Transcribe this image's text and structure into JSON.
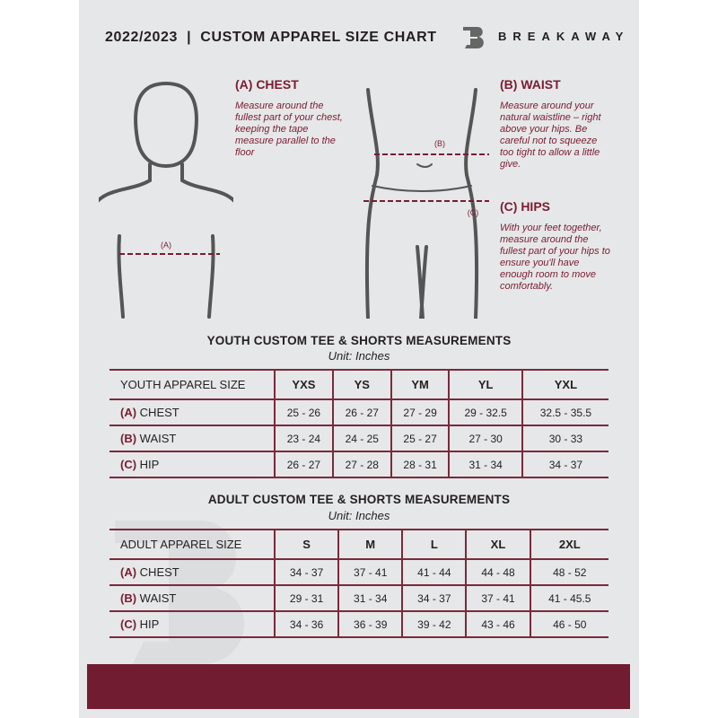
{
  "header": {
    "title": "2022/2023  |  CUSTOM APPAREL SIZE CHART",
    "brand": "BREAKAWAY",
    "logo_letter": "B"
  },
  "measures": {
    "chest": {
      "heading": "(A) CHEST",
      "desc": "Measure around the fullest part of your chest, keeping the tape measure parallel to the floor",
      "marker": "(A)"
    },
    "waist": {
      "heading": "(B) WAIST",
      "desc": "Measure around your natural waistline – right above your hips. Be careful not to squeeze too tight to allow a little give.",
      "marker": "(B)"
    },
    "hips": {
      "heading": "(C) HIPS",
      "desc": "With your feet together, measure around the fullest part of your hips to ensure you'll have enough room to move comfortably.",
      "marker": "(C)"
    }
  },
  "youth": {
    "title": "YOUTH CUSTOM TEE & SHORTS MEASUREMENTS",
    "unit": "Unit: Inches",
    "size_label": "YOUTH APPAREL SIZE",
    "sizes": [
      "YXS",
      "YS",
      "YM",
      "YL",
      "YXL"
    ],
    "rows": [
      {
        "letter": "(A)",
        "name": "CHEST",
        "values": [
          "25 - 26",
          "26 - 27",
          "27 - 29",
          "29 - 32.5",
          "32.5 - 35.5"
        ]
      },
      {
        "letter": "(B)",
        "name": "WAIST",
        "values": [
          "23 - 24",
          "24 - 25",
          "25 - 27",
          "27 - 30",
          "30 - 33"
        ]
      },
      {
        "letter": "(C)",
        "name": "HIP",
        "values": [
          "26 - 27",
          "27 - 28",
          "28 - 31",
          "31 - 34",
          "34 - 37"
        ]
      }
    ]
  },
  "adult": {
    "title": "ADULT CUSTOM TEE & SHORTS MEASUREMENTS",
    "unit": "Unit: Inches",
    "size_label": "ADULT APPAREL SIZE",
    "sizes": [
      "S",
      "M",
      "L",
      "XL",
      "2XL"
    ],
    "rows": [
      {
        "letter": "(A)",
        "name": "CHEST",
        "values": [
          "34 - 37",
          "37 - 41",
          "41 - 44",
          "44 - 48",
          "48 - 52"
        ]
      },
      {
        "letter": "(B)",
        "name": "WAIST",
        "values": [
          "29 - 31",
          "31 - 34",
          "34 - 37",
          "37 - 41",
          "41 - 45.5"
        ]
      },
      {
        "letter": "(C)",
        "name": "HIP",
        "values": [
          "34 - 36",
          "36 - 39",
          "39 - 42",
          "43 - 46",
          "46 - 50"
        ]
      }
    ]
  },
  "colors": {
    "accent": "#721c31",
    "background": "#e6e7e8"
  }
}
